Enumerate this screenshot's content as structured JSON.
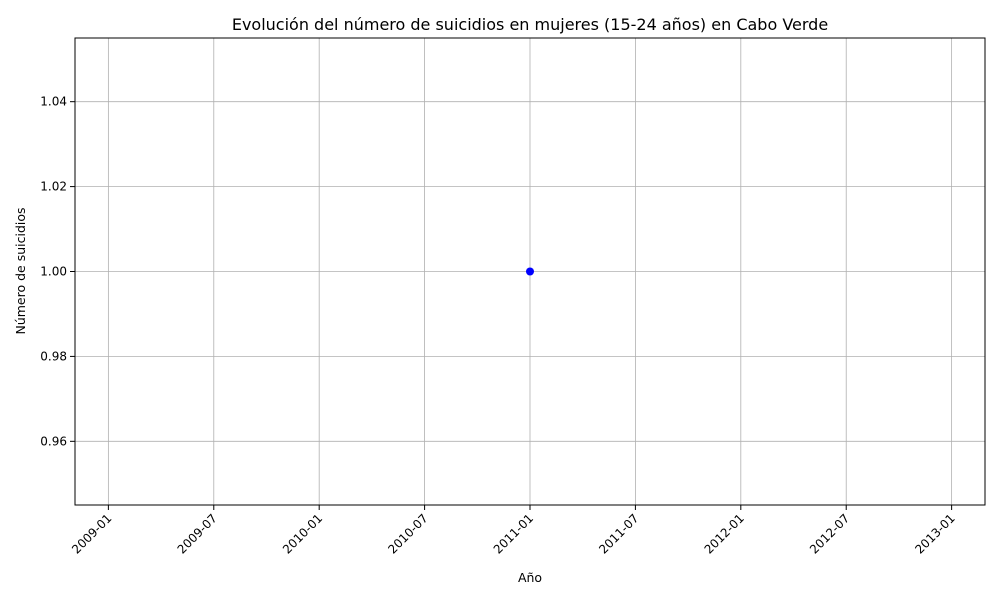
{
  "chart_data": {
    "type": "line",
    "title": "Evolución del número de suicidios en mujeres (15-24 años) en Cabo Verde",
    "xlabel": "Año",
    "ylabel": "Número de suicidios",
    "x_ticks": [
      "2009-01",
      "2009-07",
      "2010-01",
      "2010-07",
      "2011-01",
      "2011-07",
      "2012-01",
      "2012-07",
      "2013-01"
    ],
    "y_ticks": [
      "0.96",
      "0.98",
      "1.00",
      "1.02",
      "1.04"
    ],
    "xlim": [
      "2008-11",
      "2013-03"
    ],
    "ylim": [
      0.945,
      1.055
    ],
    "grid": true,
    "series": [
      {
        "color": "#0000ff",
        "marker": "circle",
        "points": [
          {
            "x": "2011-01",
            "y": 1.0
          }
        ]
      }
    ]
  }
}
